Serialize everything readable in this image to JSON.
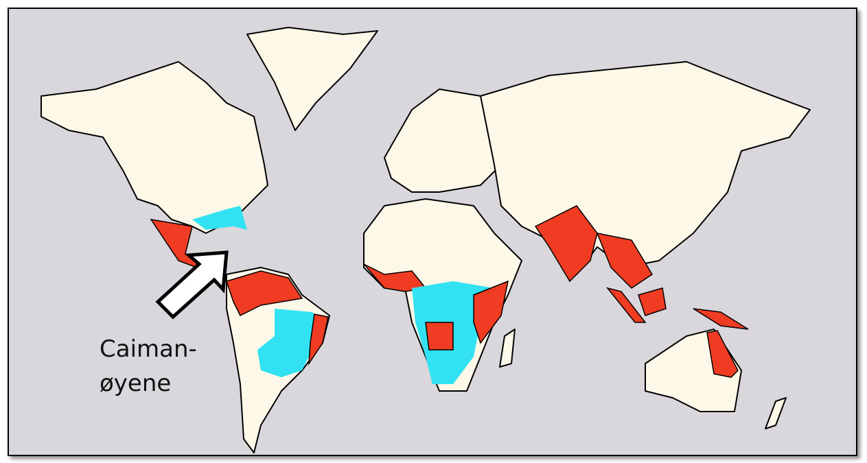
{
  "annotation": {
    "lines": [
      "Caiman-",
      "øyene"
    ]
  }
}
